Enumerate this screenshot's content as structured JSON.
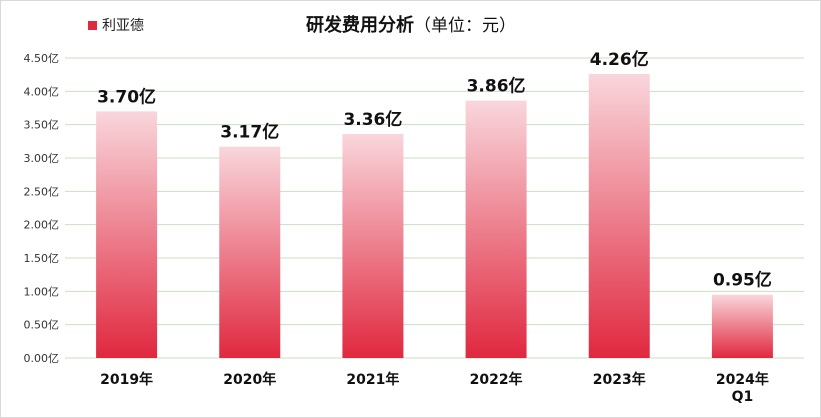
{
  "chart_data": {
    "type": "bar",
    "title": "研发费用分析",
    "subtitle": "（单位：元）",
    "legend": {
      "position": "top-left",
      "entries": [
        "利亚德"
      ]
    },
    "series": [
      {
        "name": "利亚德",
        "values": [
          3.7,
          3.17,
          3.36,
          3.86,
          4.26,
          0.95
        ],
        "color": "#e0283f",
        "color_light": "#f9d6dc"
      }
    ],
    "categories": [
      [
        "2019年"
      ],
      [
        "2020年"
      ],
      [
        "2021年"
      ],
      [
        "2022年"
      ],
      [
        "2023年"
      ],
      [
        "2024年",
        "Q1"
      ]
    ],
    "data_labels": [
      "3.70亿",
      "3.17亿",
      "3.36亿",
      "3.86亿",
      "4.26亿",
      "0.95亿"
    ],
    "y_ticks": [
      {
        "value": 0.0,
        "label": "0.00亿"
      },
      {
        "value": 0.5,
        "label": "0.50亿"
      },
      {
        "value": 1.0,
        "label": "1.00亿"
      },
      {
        "value": 1.5,
        "label": "1.50亿"
      },
      {
        "value": 2.0,
        "label": "2.00亿"
      },
      {
        "value": 2.5,
        "label": "2.50亿"
      },
      {
        "value": 3.0,
        "label": "3.00亿"
      },
      {
        "value": 3.5,
        "label": "3.50亿"
      },
      {
        "value": 4.0,
        "label": "4.00亿"
      },
      {
        "value": 4.5,
        "label": "4.50亿"
      }
    ],
    "ylim": [
      0,
      4.5
    ],
    "unit": "亿",
    "grid": true,
    "grid_color": "#c8dfc0"
  }
}
